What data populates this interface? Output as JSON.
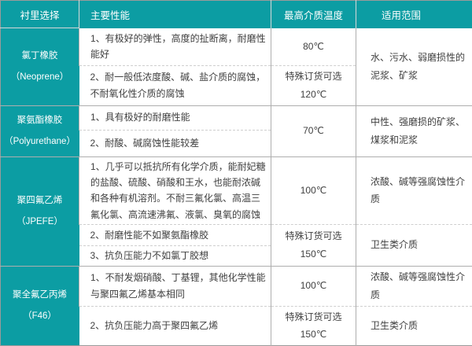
{
  "table": {
    "headers": [
      "衬里选择",
      "主要性能",
      "最高介质温度",
      "适用范围"
    ],
    "groups": [
      {
        "material": "氯丁橡胶\n（Neoprene）",
        "performance": [
          "1、有极好的弹性，高度的扯断离，耐磨性\n能好",
          "2、耐一般低浓度酸、碱、盐介质的腐蚀，\n不耐氧化性介质的腐蚀"
        ],
        "temps": [
          {
            "text": "80℃",
            "span": 1
          },
          {
            "text": "特殊订货可选\n120℃",
            "span": 1
          }
        ],
        "ranges": [
          {
            "text": "水、污水、弱磨损性的\n泥浆、矿浆",
            "span": 2
          }
        ]
      },
      {
        "material": "聚氨酯橡胶\n（Polyurethane）",
        "performance": [
          "1、具有极好的耐磨性能",
          "2、耐酸、碱腐蚀性能较差"
        ],
        "temps": [
          {
            "text": "70℃",
            "span": 2
          }
        ],
        "ranges": [
          {
            "text": "中性、强磨损的矿浆、\n煤浆和泥浆",
            "span": 2
          }
        ]
      },
      {
        "material": "聚四氟乙烯\n（JPEFE）",
        "performance": [
          "1、几乎可以抵抗所有化学介质，能耐妃糖\n的盐酸、硫酸、硝酸和王水，也能耐浓碱\n和各种有机溶剂。不耐三氟化氯、高温三\n氟化氯、高流速沸氟、液氯、臭氧的腐蚀",
          "2、耐磨性能不如聚氨酯橡胶",
          "3、抗负压能力不如氯丁胶想"
        ],
        "temps": [
          {
            "text": "100℃",
            "span": 1
          },
          {
            "text": "特殊订货可选\n150℃",
            "span": 2
          }
        ],
        "ranges": [
          {
            "text": "浓酸、碱等强腐蚀性介\n质",
            "span": 1
          },
          {
            "text": "卫生类介质",
            "span": 2
          }
        ]
      },
      {
        "material": "聚全氟乙丙烯\n（F46）",
        "performance": [
          "1、不耐发烟硝酸、丁基锂，其他化学性能\n与聚四氟乙烯基本相同",
          "2、抗负压能力高于聚四氟乙烯"
        ],
        "temps": [
          {
            "text": "100℃",
            "span": 1
          },
          {
            "text": "特殊订货可选\n150℃",
            "span": 1
          }
        ],
        "ranges": [
          {
            "text": "浓酸、碱等强腐蚀性介\n质",
            "span": 1
          },
          {
            "text": "卫生类介质",
            "span": 1
          }
        ]
      }
    ]
  },
  "colors": {
    "accent": "#0c9da3",
    "border": "#aeaeae",
    "dashed": "#cfcfcf",
    "text": "#404040"
  }
}
